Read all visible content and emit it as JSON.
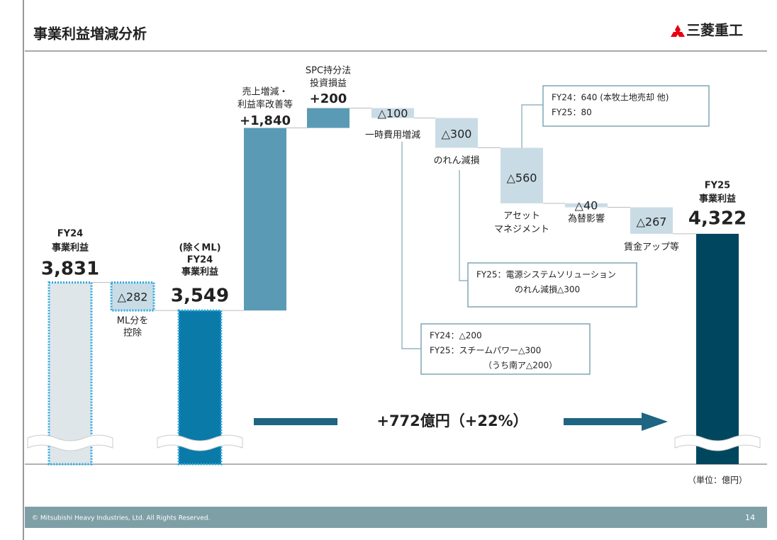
{
  "header": {
    "title": "事業利益増減分析",
    "logo": "三菱重工"
  },
  "chart_data": {
    "type": "waterfall",
    "categories": [
      [
        "FY24",
        "事業利益"
      ],
      [
        "ML分を",
        "控除"
      ],
      [
        "(除くML)",
        "FY24",
        "事業利益"
      ],
      [
        "売上増減・",
        "利益率改善等"
      ],
      [
        "SPC持分法",
        "投資損益"
      ],
      [
        "一時費用増減"
      ],
      [
        "のれん減損"
      ],
      [
        "アセット",
        "マネジメント"
      ],
      [
        "為替影響"
      ],
      [
        "賃金アップ等"
      ],
      [
        "FY25",
        "事業利益"
      ]
    ],
    "values": [
      3831,
      -282,
      3549,
      1840,
      200,
      -100,
      -300,
      -560,
      -40,
      -267,
      4322
    ],
    "value_labels": [
      "3,831",
      "△282",
      "3,549",
      "+1,840",
      "+200",
      "△100",
      "△300",
      "△560",
      "△40",
      "△267",
      "4,322"
    ],
    "measures": [
      "absolute",
      "relative",
      "absolute",
      "relative",
      "relative",
      "relative",
      "relative",
      "relative",
      "relative",
      "relative",
      "absolute"
    ],
    "colors": [
      "#dfe6ea",
      "#c9dce6",
      "#0a7aa8",
      "#5b9ab5",
      "#5b9ab5",
      "#c9dce6",
      "#c9dce6",
      "#c9dce6",
      "#c9dce6",
      "#c9dce6",
      "#00465f"
    ],
    "outlined": [
      true,
      true,
      true,
      false,
      false,
      false,
      false,
      false,
      false,
      false,
      false
    ],
    "outline_color": "#2aa7dd",
    "annotation": "+772億円（+22%）",
    "unit_note": "（単位：億円）",
    "callouts": [
      [
        "FY24：640 (本牧土地売却 他)",
        "FY25：80"
      ],
      [
        "FY25：電源システムソリューション",
        "のれん減損△300"
      ],
      [
        "FY24：△200",
        "FY25：スチームパワー△300",
        "（うち南ア△200）"
      ]
    ]
  },
  "footer": {
    "copyright": "© Mitsubishi Heavy Industries, Ltd.  All Rights Reserved.",
    "page": "14"
  }
}
